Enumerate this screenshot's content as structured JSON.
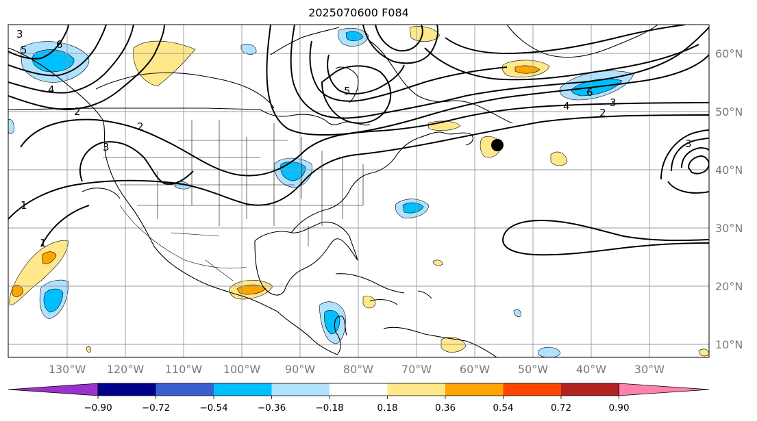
{
  "title": "2025070600 F084",
  "map": {
    "lon_labels": [
      "130°W",
      "120°W",
      "110°W",
      "100°W",
      "90°W",
      "80°W",
      "70°W",
      "60°W",
      "50°W",
      "40°W",
      "30°W"
    ],
    "lat_labels": [
      "60°N",
      "50°N",
      "40°N",
      "30°N",
      "20°N",
      "10°N"
    ],
    "contour_labels": [
      "1",
      "1",
      "2",
      "2",
      "2",
      "3",
      "3",
      "3",
      "3",
      "4",
      "4",
      "5",
      "5",
      "6",
      "6"
    ],
    "marker": "storm-center-dot"
  },
  "colorbar": {
    "colors": [
      "#9933cc",
      "#00008b",
      "#3a5fcd",
      "#00bfff",
      "#b0e2ff",
      "#ffffff",
      "#ffe88c",
      "#ffa500",
      "#ff4500",
      "#b22222",
      "#ff82ab"
    ],
    "labels": [
      "−0.90",
      "−0.72",
      "−0.54",
      "−0.36",
      "−0.18",
      "0.18",
      "0.36",
      "0.54",
      "0.72",
      "0.90"
    ]
  }
}
